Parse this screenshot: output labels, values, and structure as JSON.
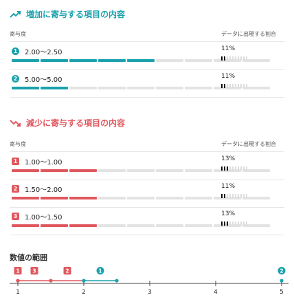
{
  "increase": {
    "title": "増加に寄与する項目の内容",
    "icon": "trend-up-icon",
    "color": "#1aa2ad",
    "header_left": "寄与度",
    "header_right": "データに出現する割合",
    "items": [
      {
        "badge": "1",
        "range": "2.00〜2.50",
        "bar_level": 5,
        "bar_total": 9,
        "pct": "11%",
        "ticks_on": 2,
        "ticks_total": 10
      },
      {
        "badge": "2",
        "range": "5.00〜5.00",
        "bar_level": 2,
        "bar_total": 9,
        "pct": "11%",
        "ticks_on": 2,
        "ticks_total": 10
      }
    ]
  },
  "decrease": {
    "title": "減少に寄与する項目の内容",
    "icon": "trend-down-icon",
    "color": "#e0585e",
    "header_left": "寄与度",
    "header_right": "データに出現する割合",
    "items": [
      {
        "badge": "1",
        "range": "1.00〜1.00",
        "bar_level": 3,
        "bar_total": 9,
        "pct": "13%",
        "ticks_on": 3,
        "ticks_total": 10
      },
      {
        "badge": "2",
        "range": "1.50〜2.00",
        "bar_level": 3,
        "bar_total": 9,
        "pct": "11%",
        "ticks_on": 2,
        "ticks_total": 10
      },
      {
        "badge": "3",
        "range": "1.00〜1.50",
        "bar_level": 3,
        "bar_total": 9,
        "pct": "13%",
        "ticks_on": 3,
        "ticks_total": 10
      }
    ]
  },
  "value_range": {
    "title": "数値の範囲",
    "axis_min": 1,
    "axis_max": 5,
    "tick_labels": [
      "1",
      "2",
      "3",
      "4",
      "5"
    ],
    "decrease_markers": [
      {
        "badge": "1",
        "from": 1.0,
        "to": 1.0
      },
      {
        "badge": "3",
        "from": 1.0,
        "to": 1.5
      },
      {
        "badge": "2",
        "from": 1.5,
        "to": 2.0
      }
    ],
    "increase_markers": [
      {
        "badge": "1",
        "from": 2.0,
        "to": 2.5
      },
      {
        "badge": "2",
        "from": 5.0,
        "to": 5.0
      }
    ]
  }
}
